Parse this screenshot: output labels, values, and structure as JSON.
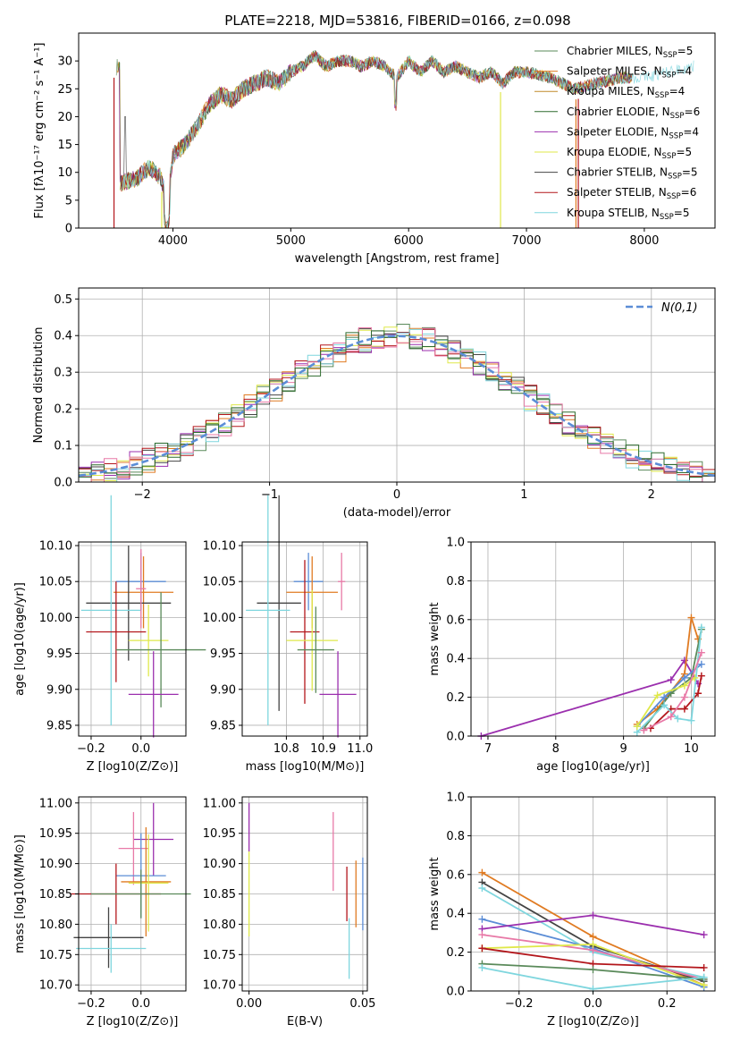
{
  "colors": [
    "#5b8dd6",
    "#e07b22",
    "#c08a2a",
    "#5a8a5a",
    "#9b2fae",
    "#dfe84a",
    "#444444",
    "#b3161b",
    "#7fd6de",
    "#e879a7",
    "#6e7fdf",
    "#2e6b2e"
  ],
  "chart_data": [
    {
      "id": "spectrum",
      "type": "line",
      "title": "PLATE=2218, MJD=53816, FIBERID=0166, z=0.098",
      "xlabel": "wavelength [Angstrom, rest frame]",
      "ylabel": "Flux [f_λ 10^-17 erg cm^-2 s^-1 A^-1]",
      "xlim": [
        3200,
        8600
      ],
      "ylim": [
        0,
        35
      ],
      "xticks": [
        4000,
        5000,
        6000,
        7000,
        8000
      ],
      "yticks": [
        0,
        5,
        10,
        15,
        20,
        25,
        30
      ],
      "legend": [
        {
          "label": "Chabrier MILES, N_SSP=5",
          "color": "#5a8a5a"
        },
        {
          "label": "Salpeter MILES, N_SSP=4",
          "color": "#e07b22"
        },
        {
          "label": "Kroupa MILES, N_SSP=4",
          "color": "#c08a2a"
        },
        {
          "label": "Chabrier ELODIE, N_SSP=6",
          "color": "#2e6b2e"
        },
        {
          "label": "Salpeter ELODIE, N_SSP=4",
          "color": "#9b2fae"
        },
        {
          "label": "Kroupa ELODIE, N_SSP=5",
          "color": "#dfe84a"
        },
        {
          "label": "Chabrier STELIB, N_SSP=5",
          "color": "#444444"
        },
        {
          "label": "Salpeter STELIB, N_SSP=6",
          "color": "#b3161b"
        },
        {
          "label": "Kroupa STELIB, N_SSP=5",
          "color": "#7fd6de"
        }
      ],
      "legend_position": "upper right",
      "envelope": [
        [
          3550,
          8
        ],
        [
          3700,
          9
        ],
        [
          3800,
          11
        ],
        [
          3900,
          9
        ],
        [
          3950,
          4
        ],
        [
          4000,
          13
        ],
        [
          4100,
          15
        ],
        [
          4200,
          18
        ],
        [
          4300,
          22
        ],
        [
          4400,
          24
        ],
        [
          4500,
          23
        ],
        [
          4600,
          25
        ],
        [
          4700,
          26
        ],
        [
          4800,
          27
        ],
        [
          4900,
          26
        ],
        [
          5000,
          28
        ],
        [
          5100,
          29
        ],
        [
          5200,
          31
        ],
        [
          5300,
          29
        ],
        [
          5400,
          30
        ],
        [
          5500,
          30
        ],
        [
          5600,
          29
        ],
        [
          5700,
          30
        ],
        [
          5800,
          29
        ],
        [
          5900,
          27
        ],
        [
          6000,
          30
        ],
        [
          6100,
          28
        ],
        [
          6200,
          30
        ],
        [
          6300,
          28
        ],
        [
          6400,
          29
        ],
        [
          6500,
          28
        ],
        [
          6600,
          27
        ],
        [
          6700,
          28
        ],
        [
          6800,
          26
        ],
        [
          6900,
          28
        ],
        [
          7000,
          28
        ],
        [
          7200,
          27
        ],
        [
          7400,
          25
        ],
        [
          7600,
          26
        ],
        [
          7800,
          27
        ],
        [
          8000,
          27
        ],
        [
          8200,
          28
        ],
        [
          8400,
          29
        ]
      ],
      "drops": [
        [
          3500,
          0
        ],
        [
          3900,
          0
        ],
        [
          6780,
          0
        ],
        [
          7420,
          0
        ]
      ]
    },
    {
      "id": "residuals",
      "type": "histogram",
      "xlabel": "(data-model)/error",
      "ylabel": "Normed distribution",
      "xlim": [
        -2.5,
        2.5
      ],
      "ylim": [
        0,
        0.53
      ],
      "xticks": [
        -2,
        -1,
        0,
        1,
        2
      ],
      "yticks": [
        0.0,
        0.1,
        0.2,
        0.3,
        0.4,
        0.5
      ],
      "grid": true,
      "reference_label": "N(0,1)",
      "legend_position": "upper right",
      "bin_width": 0.1
    },
    {
      "id": "age_vs_Z",
      "type": "errorbar",
      "xlabel": "Z [log10(Z/Z⊙)]",
      "ylabel": "age  [log10(age/yr)]",
      "xlim": [
        -0.25,
        0.18
      ],
      "ylim": [
        9.835,
        10.105
      ],
      "xticks": [
        -0.2,
        0.0
      ],
      "yticks": [
        9.85,
        9.9,
        9.95,
        10.0,
        10.05,
        10.1
      ],
      "grid": true,
      "points": [
        {
          "x": 0.0,
          "y": 10.05,
          "xerr": 0.1,
          "yerr": 0.04,
          "c": 0
        },
        {
          "x": 0.01,
          "y": 10.035,
          "xerr": 0.12,
          "yerr": 0.05,
          "c": 1
        },
        {
          "x": -0.05,
          "y": 10.02,
          "xerr": 0.17,
          "yerr": 0.08,
          "c": 6
        },
        {
          "x": -0.12,
          "y": 10.01,
          "xerr": 0.12,
          "yerr": 0.16,
          "c": 8
        },
        {
          "x": -0.1,
          "y": 9.98,
          "xerr": 0.12,
          "yerr": 0.07,
          "c": 7
        },
        {
          "x": 0.03,
          "y": 9.968,
          "xerr": 0.08,
          "yerr": 0.05,
          "c": 5
        },
        {
          "x": 0.08,
          "y": 9.955,
          "xerr": 0.18,
          "yerr": 0.08,
          "c": 3
        },
        {
          "x": 0.05,
          "y": 9.893,
          "xerr": 0.1,
          "yerr": 0.06,
          "c": 4
        },
        {
          "x": 0.0,
          "y": 10.04,
          "xerr": 0.02,
          "yerr": 0.055,
          "c": 9
        }
      ]
    },
    {
      "id": "age_vs_mass",
      "type": "errorbar",
      "xlabel": "mass [log10(M/M⊙)]",
      "ylabel": "",
      "xlim": [
        10.68,
        11.02
      ],
      "ylim": [
        9.835,
        10.105
      ],
      "xticks": [
        10.8,
        10.9,
        11.0
      ],
      "yticks": [
        9.85,
        9.9,
        9.95,
        10.0,
        10.05,
        10.1
      ],
      "grid": true,
      "points": [
        {
          "x": 10.86,
          "y": 10.05,
          "xerr": 0.04,
          "yerr": 0.04,
          "c": 0
        },
        {
          "x": 10.87,
          "y": 10.035,
          "xerr": 0.07,
          "yerr": 0.05,
          "c": 1
        },
        {
          "x": 10.78,
          "y": 10.02,
          "xerr": 0.06,
          "yerr": 0.15,
          "c": 6
        },
        {
          "x": 10.75,
          "y": 10.01,
          "xerr": 0.06,
          "yerr": 0.16,
          "c": 8
        },
        {
          "x": 10.85,
          "y": 9.98,
          "xerr": 0.04,
          "yerr": 0.1,
          "c": 7
        },
        {
          "x": 10.87,
          "y": 9.968,
          "xerr": 0.07,
          "yerr": 0.07,
          "c": 5
        },
        {
          "x": 10.88,
          "y": 9.955,
          "xerr": 0.05,
          "yerr": 0.06,
          "c": 3
        },
        {
          "x": 10.94,
          "y": 9.893,
          "xerr": 0.05,
          "yerr": 0.06,
          "c": 4
        },
        {
          "x": 10.95,
          "y": 10.05,
          "xerr": 0.01,
          "yerr": 0.04,
          "c": 9
        }
      ]
    },
    {
      "id": "weight_vs_age",
      "type": "line",
      "xlabel": "age  [log10(age/yr)]",
      "ylabel": "mass weight",
      "xlim": [
        6.75,
        10.35
      ],
      "ylim": [
        0,
        1.0
      ],
      "xticks": [
        7,
        8,
        9,
        10
      ],
      "yticks": [
        0.0,
        0.2,
        0.4,
        0.6,
        0.8,
        1.0
      ],
      "grid": true,
      "series": [
        {
          "c": 4,
          "x": [
            6.9,
            9.7,
            9.9,
            10.1
          ],
          "y": [
            0.0,
            0.29,
            0.39,
            0.27
          ]
        },
        {
          "c": 1,
          "x": [
            9.2,
            9.5,
            9.9,
            10.0,
            10.1
          ],
          "y": [
            0.06,
            0.14,
            0.32,
            0.61,
            0.5
          ]
        },
        {
          "c": 3,
          "x": [
            9.3,
            9.7,
            10.0,
            10.15
          ],
          "y": [
            0.04,
            0.22,
            0.3,
            0.55
          ]
        },
        {
          "c": 0,
          "x": [
            9.2,
            9.6,
            9.9,
            10.15
          ],
          "y": [
            0.05,
            0.2,
            0.3,
            0.37
          ]
        },
        {
          "c": 7,
          "x": [
            9.4,
            9.7,
            9.9,
            10.1,
            10.15
          ],
          "y": [
            0.04,
            0.14,
            0.14,
            0.22,
            0.31
          ]
        },
        {
          "c": 8,
          "x": [
            9.2,
            9.6,
            9.8,
            10.0,
            10.15
          ],
          "y": [
            0.02,
            0.16,
            0.09,
            0.08,
            0.56
          ]
        },
        {
          "c": 5,
          "x": [
            9.2,
            9.5,
            9.9,
            10.05
          ],
          "y": [
            0.05,
            0.21,
            0.26,
            0.3
          ]
        },
        {
          "c": 9,
          "x": [
            9.3,
            9.7,
            9.9,
            10.15
          ],
          "y": [
            0.03,
            0.1,
            0.2,
            0.43
          ]
        }
      ]
    },
    {
      "id": "mass_vs_Z",
      "type": "errorbar",
      "xlabel": "Z [log10(Z/Z⊙)]",
      "ylabel": "mass [log10(M/M⊙)]",
      "xlim": [
        -0.25,
        0.18
      ],
      "ylim": [
        10.69,
        11.01
      ],
      "xticks": [
        -0.2,
        0.0
      ],
      "yticks": [
        10.7,
        10.75,
        10.8,
        10.85,
        10.9,
        10.95,
        11.0
      ],
      "grid": true,
      "points": [
        {
          "x": 0.05,
          "y": 10.94,
          "xerr": 0.08,
          "yerr": 0.06,
          "c": 4
        },
        {
          "x": -0.03,
          "y": 10.925,
          "xerr": 0.06,
          "yerr": 0.06,
          "c": 9
        },
        {
          "x": 0.0,
          "y": 10.88,
          "xerr": 0.1,
          "yerr": 0.07,
          "c": 0
        },
        {
          "x": 0.02,
          "y": 10.87,
          "xerr": 0.1,
          "yerr": 0.09,
          "c": 1
        },
        {
          "x": 0.03,
          "y": 10.868,
          "xerr": 0.08,
          "yerr": 0.08,
          "c": 5
        },
        {
          "x": -0.1,
          "y": 10.85,
          "xerr": 0.18,
          "yerr": 0.05,
          "c": 7
        },
        {
          "x": 0.0,
          "y": 10.85,
          "xerr": 0.2,
          "yerr": 0.04,
          "c": 3
        },
        {
          "x": -0.13,
          "y": 10.778,
          "xerr": 0.14,
          "yerr": 0.05,
          "c": 6
        },
        {
          "x": -0.12,
          "y": 10.76,
          "xerr": 0.14,
          "yerr": 0.04,
          "c": 8
        }
      ]
    },
    {
      "id": "mass_vs_ebv",
      "type": "errorbar",
      "xlabel": "E(B-V)",
      "ylabel": "",
      "xlim": [
        -0.003,
        0.052
      ],
      "ylim": [
        10.69,
        11.01
      ],
      "xticks": [
        0.0,
        0.05
      ],
      "yticks": [
        10.7,
        10.75,
        10.8,
        10.85,
        10.9,
        10.95,
        11.0
      ],
      "grid": true,
      "points": [
        {
          "x": 0.0,
          "y": 10.96,
          "xerr": 0,
          "yerr": 0.04,
          "c": 4
        },
        {
          "x": 0.0,
          "y": 10.85,
          "xerr": 0,
          "yerr": 0.07,
          "c": 5
        },
        {
          "x": 0.037,
          "y": 10.92,
          "xerr": 0,
          "yerr": 0.065,
          "c": 9
        },
        {
          "x": 0.043,
          "y": 10.85,
          "xerr": 0,
          "yerr": 0.045,
          "c": 7
        },
        {
          "x": 0.047,
          "y": 10.85,
          "xerr": 0,
          "yerr": 0.055,
          "c": 1
        },
        {
          "x": 0.05,
          "y": 10.85,
          "xerr": 0,
          "yerr": 0.06,
          "c": 0
        },
        {
          "x": 0.044,
          "y": 10.76,
          "xerr": 0,
          "yerr": 0.05,
          "c": 8
        }
      ]
    },
    {
      "id": "weight_vs_Z",
      "type": "line",
      "xlabel": "Z [log10(Z/Z⊙)]",
      "ylabel": "mass weight",
      "xlim": [
        -0.33,
        0.33
      ],
      "ylim": [
        0,
        1.0
      ],
      "xticks": [
        -0.2,
        0.0,
        0.2
      ],
      "yticks": [
        0.0,
        0.2,
        0.4,
        0.6,
        0.8,
        1.0
      ],
      "grid": true,
      "series": [
        {
          "c": 1,
          "x": [
            -0.3,
            0.0,
            0.3
          ],
          "y": [
            0.61,
            0.28,
            0.03
          ]
        },
        {
          "c": 6,
          "x": [
            -0.3,
            0.0,
            0.3
          ],
          "y": [
            0.56,
            0.23,
            0.05
          ]
        },
        {
          "c": 8,
          "x": [
            -0.3,
            0.0,
            0.3
          ],
          "y": [
            0.53,
            0.2,
            0.07
          ]
        },
        {
          "c": 0,
          "x": [
            -0.3,
            0.0,
            0.3
          ],
          "y": [
            0.37,
            0.22,
            0.02
          ]
        },
        {
          "c": 4,
          "x": [
            -0.3,
            0.0,
            0.3
          ],
          "y": [
            0.32,
            0.39,
            0.29
          ]
        },
        {
          "c": 9,
          "x": [
            -0.3,
            0.0,
            0.3
          ],
          "y": [
            0.29,
            0.21,
            0.06
          ]
        },
        {
          "c": 5,
          "x": [
            -0.3,
            0.0,
            0.3
          ],
          "y": [
            0.22,
            0.24,
            0.03
          ]
        },
        {
          "c": 7,
          "x": [
            -0.3,
            0.0,
            0.3
          ],
          "y": [
            0.22,
            0.14,
            0.12
          ]
        },
        {
          "c": 3,
          "x": [
            -0.3,
            0.0,
            0.3
          ],
          "y": [
            0.14,
            0.11,
            0.06
          ]
        },
        {
          "c": 8,
          "x": [
            -0.3,
            0.0,
            0.3
          ],
          "y": [
            0.12,
            0.01,
            0.07
          ]
        }
      ]
    }
  ]
}
